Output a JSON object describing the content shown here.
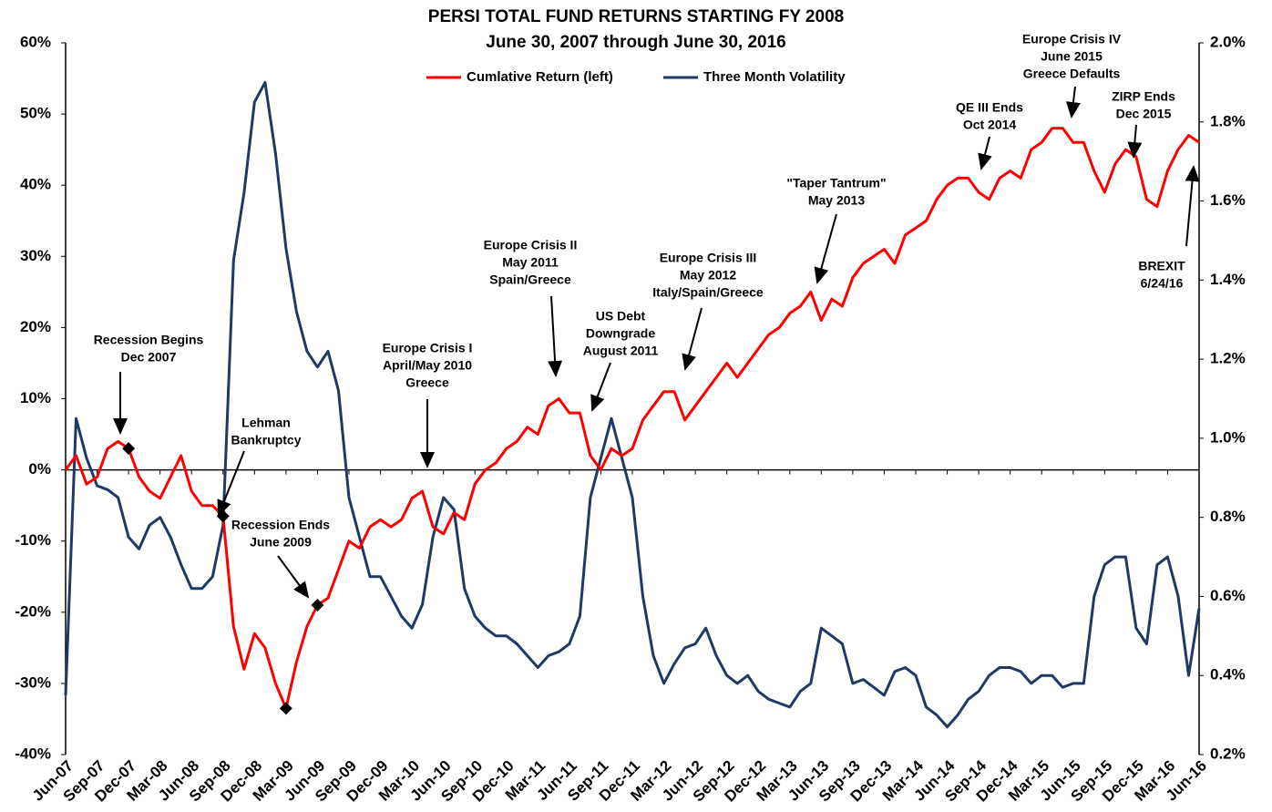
{
  "chart_data": {
    "type": "line",
    "title": [
      "PERSI TOTAL FUND RETURNS STARTING FY 2008",
      "June 30, 2007 through June 30, 2016"
    ],
    "categories": [
      "Jun-07",
      null,
      null,
      "Sep-07",
      null,
      null,
      "Dec-07",
      null,
      null,
      "Mar-08",
      null,
      null,
      "Jun-08",
      null,
      null,
      "Sep-08",
      null,
      null,
      "Dec-08",
      null,
      null,
      "Mar-09",
      null,
      null,
      "Jun-09",
      null,
      null,
      "Sep-09",
      null,
      null,
      "Dec-09",
      null,
      null,
      "Mar-10",
      null,
      null,
      "Jun-10",
      null,
      null,
      "Sep-10",
      null,
      null,
      "Dec-10",
      null,
      null,
      "Mar-11",
      null,
      null,
      "Jun-11",
      null,
      null,
      "Sep-11",
      null,
      null,
      "Dec-11",
      null,
      null,
      "Mar-12",
      null,
      null,
      "Jun-12",
      null,
      null,
      "Sep-12",
      null,
      null,
      "Dec-12",
      null,
      null,
      "Mar-13",
      null,
      null,
      "Jun-13",
      null,
      null,
      "Sep-13",
      null,
      null,
      "Dec-13",
      null,
      null,
      "Mar-14",
      null,
      null,
      "Jun-14",
      null,
      null,
      "Sep-14",
      null,
      null,
      "Dec-14",
      null,
      null,
      "Mar-15",
      null,
      null,
      "Jun-15",
      null,
      null,
      "Sep-15",
      null,
      null,
      "Dec-15",
      null,
      null,
      "Mar-16",
      null,
      null,
      "Jun-16"
    ],
    "series": [
      {
        "name": "Cumlative Return (left)",
        "color": "#ff0000",
        "values": [
          0,
          2,
          -2,
          -1,
          3,
          4,
          3,
          -1,
          -3,
          -4,
          -1,
          2,
          -3,
          -5,
          -5,
          -6.5,
          -22,
          -28,
          -23,
          -25,
          -30,
          -33.5,
          -27,
          -22,
          -19,
          -18,
          -14,
          -10,
          -11,
          -8,
          -7,
          -8,
          -7,
          -4,
          -3,
          -8,
          -9,
          -6,
          -7,
          -2,
          0,
          1,
          3,
          4,
          6,
          5,
          9,
          10,
          8,
          8,
          2,
          0,
          3,
          2,
          3,
          7,
          9,
          11,
          11,
          7,
          9,
          11,
          13,
          15,
          13,
          15,
          17,
          19,
          20,
          22,
          23,
          25,
          21,
          24,
          23,
          27,
          29,
          30,
          31,
          29,
          33,
          34,
          35,
          38,
          40,
          41,
          41,
          39,
          38,
          41,
          42,
          41,
          45,
          46,
          48,
          48,
          46,
          46,
          42,
          39,
          43,
          45,
          44,
          38,
          37,
          42,
          45,
          47,
          46
        ]
      },
      {
        "name": "Three Month Volatility",
        "color": "#1f3864",
        "axis": "y2",
        "values": [
          0.35,
          1.05,
          0.95,
          0.88,
          0.87,
          0.85,
          0.75,
          0.72,
          0.78,
          0.8,
          0.75,
          0.68,
          0.62,
          0.62,
          0.65,
          0.78,
          1.45,
          1.62,
          1.85,
          1.9,
          1.72,
          1.48,
          1.32,
          1.22,
          1.18,
          1.22,
          1.12,
          0.85,
          0.75,
          0.65,
          0.65,
          0.6,
          0.55,
          0.52,
          0.58,
          0.75,
          0.85,
          0.82,
          0.62,
          0.55,
          0.52,
          0.5,
          0.5,
          0.48,
          0.45,
          0.42,
          0.45,
          0.46,
          0.48,
          0.55,
          0.85,
          0.95,
          1.05,
          0.95,
          0.85,
          0.6,
          0.45,
          0.38,
          0.43,
          0.47,
          0.48,
          0.52,
          0.45,
          0.4,
          0.38,
          0.4,
          0.36,
          0.34,
          0.33,
          0.32,
          0.36,
          0.38,
          0.52,
          0.5,
          0.48,
          0.38,
          0.39,
          0.37,
          0.35,
          0.41,
          0.42,
          0.4,
          0.32,
          0.3,
          0.27,
          0.3,
          0.34,
          0.36,
          0.4,
          0.42,
          0.42,
          0.41,
          0.38,
          0.4,
          0.4,
          0.37,
          0.38,
          0.38,
          0.6,
          0.68,
          0.7,
          0.7,
          0.52,
          0.48,
          0.68,
          0.7,
          0.6,
          0.4,
          0.57
        ]
      }
    ],
    "ylim": [
      -40,
      60
    ],
    "yticks": [
      {
        "value": -40,
        "label": "-40%"
      },
      {
        "value": -30,
        "label": "-30%"
      },
      {
        "value": -20,
        "label": "-20%"
      },
      {
        "value": -10,
        "label": "-10%"
      },
      {
        "value": 0,
        "label": "0%"
      },
      {
        "value": 10,
        "label": "10%"
      },
      {
        "value": 20,
        "label": "20%"
      },
      {
        "value": 30,
        "label": "30%"
      },
      {
        "value": 40,
        "label": "40%"
      },
      {
        "value": 50,
        "label": "50%"
      },
      {
        "value": 60,
        "label": "60%"
      }
    ],
    "y2lim": [
      0.2,
      2.0
    ],
    "y2ticks": [
      {
        "value": 0.2,
        "label": "0.2%"
      },
      {
        "value": 0.4,
        "label": "0.4%"
      },
      {
        "value": 0.6,
        "label": "0.6%"
      },
      {
        "value": 0.8,
        "label": "0.8%"
      },
      {
        "value": 1.0,
        "label": "1.0%"
      },
      {
        "value": 1.2,
        "label": "1.2%"
      },
      {
        "value": 1.4,
        "label": "1.4%"
      },
      {
        "value": 1.6,
        "label": "1.6%"
      },
      {
        "value": 1.8,
        "label": "1.8%"
      },
      {
        "value": 2.0,
        "label": "2.0%"
      }
    ],
    "legend": "top",
    "annotations": [
      [
        "Recession  Begins",
        "Dec 2007"
      ],
      [
        "Lehman",
        "Bankruptcy"
      ],
      [
        "Recession Ends",
        "June 2009"
      ],
      [
        "Europe Crisis I",
        "April/May  2010",
        "Greece"
      ],
      [
        "Europe Crisis II",
        "May 2011",
        "Spain/Greece"
      ],
      [
        "US Debt",
        "Downgrade",
        "August 2011"
      ],
      [
        "Europe Crisis III",
        "May 2012",
        "Italy/Spain/Greece"
      ],
      [
        "\"Taper Tantrum\"",
        "May 2013"
      ],
      [
        "QE III Ends",
        "Oct 2014"
      ],
      [
        "Europe Crisis IV",
        "June 2015",
        "Greece Defaults"
      ],
      [
        "ZIRP Ends",
        "Dec 2015"
      ],
      [
        "BREXIT",
        "6/24/16"
      ]
    ]
  }
}
